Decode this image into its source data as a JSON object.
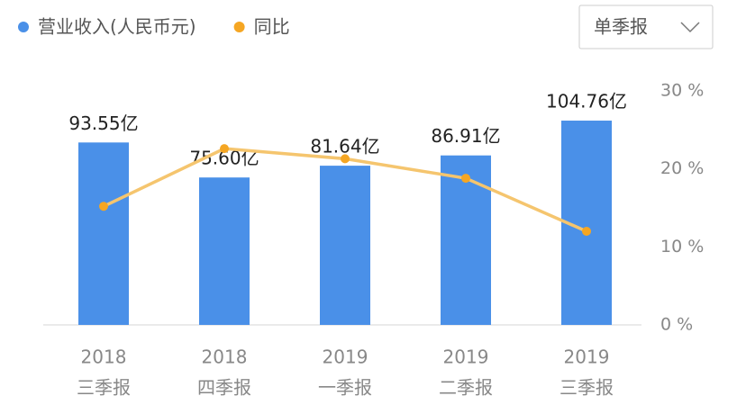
{
  "chart_data": {
    "type": "bar_line",
    "categories": [
      [
        "2018",
        "三季报"
      ],
      [
        "2018",
        "四季报"
      ],
      [
        "2019",
        "一季报"
      ],
      [
        "2019",
        "二季报"
      ],
      [
        "2019",
        "三季报"
      ]
    ],
    "series": [
      {
        "name": "营业收入(人民币元)",
        "color": "#4a90e8",
        "type": "bar",
        "values": [
          93.55,
          75.6,
          81.64,
          86.91,
          104.76
        ],
        "value_labels": [
          "93.55亿",
          "75.60亿",
          "81.64亿",
          "86.91亿",
          "104.76亿"
        ]
      },
      {
        "name": "同比",
        "color": "#f5a623",
        "line_color": "#f5c56e",
        "type": "line",
        "axis": "y2",
        "values": [
          15.2,
          22.6,
          21.3,
          18.8,
          12.0
        ]
      }
    ],
    "ylim": [
      0,
      120
    ],
    "y2lim": [
      0,
      30
    ],
    "y2ticks": [
      {
        "value": 0,
        "label": "0 %"
      },
      {
        "value": 10,
        "label": "10 %"
      },
      {
        "value": 20,
        "label": "20 %"
      },
      {
        "value": 30,
        "label": "30 %"
      }
    ]
  },
  "dropdown": {
    "label": "单季报"
  }
}
